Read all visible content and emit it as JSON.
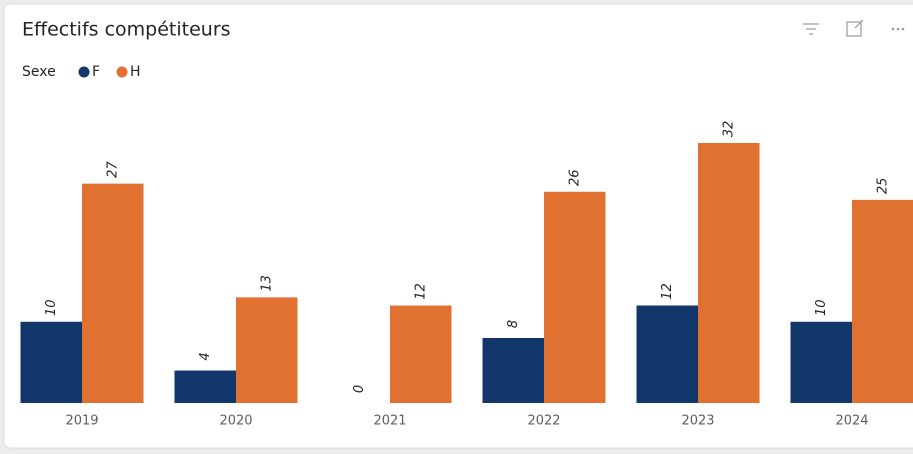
{
  "chart_data": {
    "type": "bar",
    "title": "Effectifs compétiteurs",
    "legend_title": "Sexe",
    "categories": [
      "2019",
      "2020",
      "2021",
      "2022",
      "2023",
      "2024"
    ],
    "series": [
      {
        "name": "F",
        "color": "#12386b",
        "values": [
          10,
          4,
          0,
          8,
          12,
          10
        ]
      },
      {
        "name": "H",
        "color": "#e07131",
        "values": [
          27,
          13,
          12,
          26,
          32,
          25
        ]
      }
    ]
  }
}
